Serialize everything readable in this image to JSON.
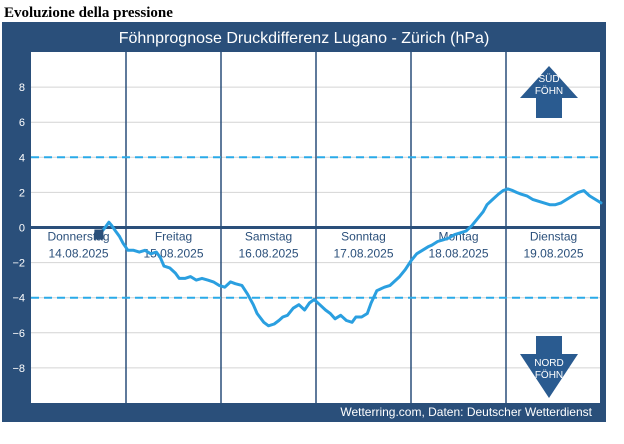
{
  "page": {
    "heading": "Evoluzione della pressione"
  },
  "chart_data": {
    "type": "line",
    "title": "Föhnprognose Druckdifferenz Lugano - Zürich (hPa)",
    "source": "Wetterring.com, Daten: Deutscher Wetterdienst",
    "ylim": [
      -10,
      10
    ],
    "yticks": [
      8,
      6,
      4,
      2,
      0,
      -2,
      -4,
      -6,
      -8
    ],
    "xlim": [
      0,
      6
    ],
    "grid": true,
    "reference_lines": [
      {
        "y": 4,
        "style": "dashed"
      },
      {
        "y": -4,
        "style": "dashed"
      },
      {
        "y": 0,
        "style": "solid"
      }
    ],
    "days": [
      {
        "name": "Donnerstag",
        "date": "14.08.2025"
      },
      {
        "name": "Freitag",
        "date": "15.08.2025"
      },
      {
        "name": "Samstag",
        "date": "16.08.2025"
      },
      {
        "name": "Sonntag",
        "date": "17.08.2025"
      },
      {
        "name": "Montag",
        "date": "18.08.2025"
      },
      {
        "name": "Dienstag",
        "date": "19.08.2025"
      }
    ],
    "indicators": {
      "south": {
        "line1": "SÜD",
        "line2": "FÖHN"
      },
      "north": {
        "line1": "NORD",
        "line2": "FÖHN"
      }
    },
    "colors": {
      "background": "#2a4f7a",
      "plot": "#ffffff",
      "series": "#2a9fe0",
      "dashed": "#2aaae8",
      "zero": "#2a4f7a",
      "arrow": "#2a5b90",
      "title_text": "#ffffff"
    },
    "series": [
      {
        "x": [
          0.72,
          0.78,
          0.82,
          0.85,
          0.89,
          0.93,
          0.97,
          1.02,
          1.08,
          1.14,
          1.2,
          1.26,
          1.32,
          1.36,
          1.4,
          1.46,
          1.52,
          1.56,
          1.62,
          1.68,
          1.74,
          1.8,
          1.86,
          1.92,
          1.98,
          2.04,
          2.1,
          2.15,
          2.22,
          2.28,
          2.34,
          2.38,
          2.45,
          2.5,
          2.56,
          2.61,
          2.65,
          2.7,
          2.76,
          2.82,
          2.88,
          2.93,
          2.98,
          3.04,
          3.1,
          3.15,
          3.2,
          3.26,
          3.32,
          3.38,
          3.42,
          3.48,
          3.54,
          3.58,
          3.64,
          3.72,
          3.78,
          3.82,
          3.88,
          3.94,
          4.0,
          4.06,
          4.12,
          4.18,
          4.22,
          4.28,
          4.34,
          4.4,
          4.46,
          4.52,
          4.58,
          4.64,
          4.7,
          4.76,
          4.8,
          4.86,
          4.92,
          4.97,
          5.02,
          5.07,
          5.11,
          5.16,
          5.22,
          5.28,
          5.34,
          5.4,
          5.46,
          5.52,
          5.58,
          5.64,
          5.7,
          5.76,
          5.82,
          5.88,
          5.94,
          6.0
        ],
        "y": [
          -0.4,
          0.0,
          0.3,
          0.1,
          -0.2,
          -0.5,
          -0.9,
          -1.3,
          -1.3,
          -1.4,
          -1.3,
          -1.5,
          -1.4,
          -1.7,
          -2.2,
          -2.3,
          -2.6,
          -2.9,
          -2.9,
          -2.8,
          -3.0,
          -2.9,
          -3.0,
          -3.1,
          -3.3,
          -3.4,
          -3.1,
          -3.2,
          -3.3,
          -3.8,
          -4.4,
          -4.9,
          -5.4,
          -5.6,
          -5.5,
          -5.3,
          -5.1,
          -5.0,
          -4.6,
          -4.4,
          -4.7,
          -4.3,
          -4.1,
          -4.4,
          -4.7,
          -4.9,
          -5.2,
          -5.0,
          -5.3,
          -5.4,
          -5.1,
          -5.1,
          -4.9,
          -4.3,
          -3.6,
          -3.4,
          -3.3,
          -3.1,
          -2.8,
          -2.4,
          -1.9,
          -1.5,
          -1.3,
          -1.1,
          -1.0,
          -0.8,
          -0.7,
          -0.6,
          -0.4,
          -0.3,
          -0.2,
          0.1,
          0.5,
          0.9,
          1.3,
          1.6,
          1.9,
          2.1,
          2.2,
          2.1,
          2.0,
          1.9,
          1.8,
          1.6,
          1.5,
          1.4,
          1.3,
          1.3,
          1.4,
          1.6,
          1.8,
          2.0,
          2.1,
          1.8,
          1.6,
          1.4
        ]
      }
    ]
  }
}
